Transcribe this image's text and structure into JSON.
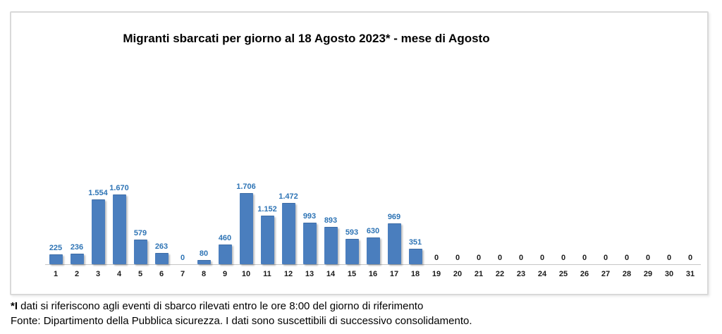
{
  "chart": {
    "bar_color": "#4A7EBE",
    "bar_edge_color": "#3D6CA5",
    "value_label_color": "#2E74B5",
    "zero_tail_label_color": "#1a1a1a",
    "axis_line_color": "#c6c6c6",
    "frame_border_color": "#d9d9d9",
    "day_label_color": "#1a1a1a"
  },
  "chart_data": {
    "type": "bar",
    "title": "Migranti sbarcati per giorno al 18 Agosto 2023* - mese di Agosto",
    "xlabel": "",
    "ylabel": "",
    "categories": [
      "1",
      "2",
      "3",
      "4",
      "5",
      "6",
      "7",
      "8",
      "9",
      "10",
      "11",
      "12",
      "13",
      "14",
      "15",
      "16",
      "17",
      "18",
      "19",
      "20",
      "21",
      "22",
      "23",
      "24",
      "25",
      "26",
      "27",
      "28",
      "29",
      "30",
      "31"
    ],
    "values": [
      225,
      236,
      1554,
      1670,
      579,
      263,
      0,
      80,
      460,
      1706,
      1152,
      1472,
      993,
      893,
      593,
      630,
      969,
      351,
      0,
      0,
      0,
      0,
      0,
      0,
      0,
      0,
      0,
      0,
      0,
      0,
      0
    ],
    "value_labels": [
      "225",
      "236",
      "1.554",
      "1.670",
      "579",
      "263",
      "0",
      "80",
      "460",
      "1.706",
      "1.152",
      "1.472",
      "993",
      "893",
      "593",
      "630",
      "969",
      "351",
      "0",
      "0",
      "0",
      "0",
      "0",
      "0",
      "0",
      "0",
      "0",
      "0",
      "0",
      "0",
      "0"
    ],
    "blue_label_through_day": 18,
    "ylim": [
      0,
      1706
    ],
    "grid": false,
    "legend": false
  },
  "footnotes": {
    "line1_prefix": "*I",
    "line1_rest": " dati si riferiscono agli eventi di sbarco rilevati entro le ore 8:00 del giorno di riferimento",
    "line2": "Fonte: Dipartimento della Pubblica sicurezza. I dati sono suscettibili di successivo consolidamento."
  }
}
